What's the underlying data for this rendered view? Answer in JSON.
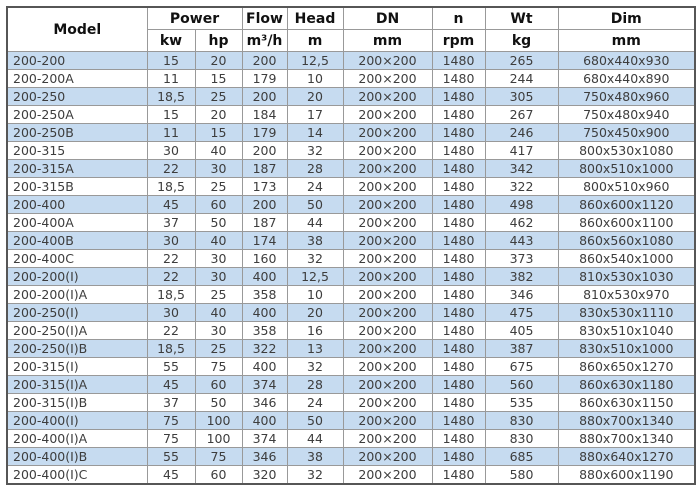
{
  "colors": {
    "row_stripe": "#c6dbf0",
    "row_alt": "#ffffff",
    "grid_line": "#999999",
    "outer_border": "#565656",
    "header_text": "#111111",
    "text": "#3d3d3d"
  },
  "table": {
    "header": {
      "model": "Model",
      "power": "Power",
      "flow": "Flow",
      "head": "Head",
      "dn": "DN",
      "n": "n",
      "wt": "Wt",
      "dim": "Dim",
      "units": {
        "kw": "kw",
        "hp": "hp",
        "flow": "m³/h",
        "head": "m",
        "dn": "mm",
        "n": "rpm",
        "wt": "kg",
        "dim": "mm"
      }
    },
    "rows": [
      {
        "model": "200-200",
        "kw": "15",
        "hp": "20",
        "flow": "200",
        "head": "12,5",
        "dn": "200×200",
        "n": "1480",
        "wt": "265",
        "dim": "680x440x930"
      },
      {
        "model": "200-200A",
        "kw": "11",
        "hp": "15",
        "flow": "179",
        "head": "10",
        "dn": "200×200",
        "n": "1480",
        "wt": "244",
        "dim": "680x440x890"
      },
      {
        "model": "200-250",
        "kw": "18,5",
        "hp": "25",
        "flow": "200",
        "head": "20",
        "dn": "200×200",
        "n": "1480",
        "wt": "305",
        "dim": "750x480x960"
      },
      {
        "model": "200-250A",
        "kw": "15",
        "hp": "20",
        "flow": "184",
        "head": "17",
        "dn": "200×200",
        "n": "1480",
        "wt": "267",
        "dim": "750x480x940"
      },
      {
        "model": "200-250B",
        "kw": "11",
        "hp": "15",
        "flow": "179",
        "head": "14",
        "dn": "200×200",
        "n": "1480",
        "wt": "246",
        "dim": "750x450x900"
      },
      {
        "model": "200-315",
        "kw": "30",
        "hp": "40",
        "flow": "200",
        "head": "32",
        "dn": "200×200",
        "n": "1480",
        "wt": "417",
        "dim": "800x530x1080"
      },
      {
        "model": "200-315A",
        "kw": "22",
        "hp": "30",
        "flow": "187",
        "head": "28",
        "dn": "200×200",
        "n": "1480",
        "wt": "342",
        "dim": "800x510x1000"
      },
      {
        "model": "200-315B",
        "kw": "18,5",
        "hp": "25",
        "flow": "173",
        "head": "24",
        "dn": "200×200",
        "n": "1480",
        "wt": "322",
        "dim": "800x510x960"
      },
      {
        "model": "200-400",
        "kw": "45",
        "hp": "60",
        "flow": "200",
        "head": "50",
        "dn": "200×200",
        "n": "1480",
        "wt": "498",
        "dim": "860x600x1120"
      },
      {
        "model": "200-400A",
        "kw": "37",
        "hp": "50",
        "flow": "187",
        "head": "44",
        "dn": "200×200",
        "n": "1480",
        "wt": "462",
        "dim": "860x600x1100"
      },
      {
        "model": "200-400B",
        "kw": "30",
        "hp": "40",
        "flow": "174",
        "head": "38",
        "dn": "200×200",
        "n": "1480",
        "wt": "443",
        "dim": "860x560x1080"
      },
      {
        "model": "200-400C",
        "kw": "22",
        "hp": "30",
        "flow": "160",
        "head": "32",
        "dn": "200×200",
        "n": "1480",
        "wt": "373",
        "dim": "860x540x1000"
      },
      {
        "model": "200-200(I)",
        "kw": "22",
        "hp": "30",
        "flow": "400",
        "head": "12,5",
        "dn": "200×200",
        "n": "1480",
        "wt": "382",
        "dim": "810x530x1030"
      },
      {
        "model": "200-200(I)A",
        "kw": "18,5",
        "hp": "25",
        "flow": "358",
        "head": "10",
        "dn": "200×200",
        "n": "1480",
        "wt": "346",
        "dim": "810x530x970"
      },
      {
        "model": "200-250(I)",
        "kw": "30",
        "hp": "40",
        "flow": "400",
        "head": "20",
        "dn": "200×200",
        "n": "1480",
        "wt": "475",
        "dim": "830x530x1110"
      },
      {
        "model": "200-250(I)A",
        "kw": "22",
        "hp": "30",
        "flow": "358",
        "head": "16",
        "dn": "200×200",
        "n": "1480",
        "wt": "405",
        "dim": "830x510x1040"
      },
      {
        "model": "200-250(I)B",
        "kw": "18,5",
        "hp": "25",
        "flow": "322",
        "head": "13",
        "dn": "200×200",
        "n": "1480",
        "wt": "387",
        "dim": "830x510x1000"
      },
      {
        "model": "200-315(I)",
        "kw": "55",
        "hp": "75",
        "flow": "400",
        "head": "32",
        "dn": "200×200",
        "n": "1480",
        "wt": "675",
        "dim": "860x650x1270"
      },
      {
        "model": "200-315(I)A",
        "kw": "45",
        "hp": "60",
        "flow": "374",
        "head": "28",
        "dn": "200×200",
        "n": "1480",
        "wt": "560",
        "dim": "860x630x1180"
      },
      {
        "model": "200-315(I)B",
        "kw": "37",
        "hp": "50",
        "flow": "346",
        "head": "24",
        "dn": "200×200",
        "n": "1480",
        "wt": "535",
        "dim": "860x630x1150"
      },
      {
        "model": "200-400(I)",
        "kw": "75",
        "hp": "100",
        "flow": "400",
        "head": "50",
        "dn": "200×200",
        "n": "1480",
        "wt": "830",
        "dim": "880x700x1340"
      },
      {
        "model": "200-400(I)A",
        "kw": "75",
        "hp": "100",
        "flow": "374",
        "head": "44",
        "dn": "200×200",
        "n": "1480",
        "wt": "830",
        "dim": "880x700x1340"
      },
      {
        "model": "200-400(I)B",
        "kw": "55",
        "hp": "75",
        "flow": "346",
        "head": "38",
        "dn": "200×200",
        "n": "1480",
        "wt": "685",
        "dim": "880x640x1270"
      },
      {
        "model": "200-400(I)C",
        "kw": "45",
        "hp": "60",
        "flow": "320",
        "head": "32",
        "dn": "200×200",
        "n": "1480",
        "wt": "580",
        "dim": "880x600x1190"
      }
    ]
  }
}
